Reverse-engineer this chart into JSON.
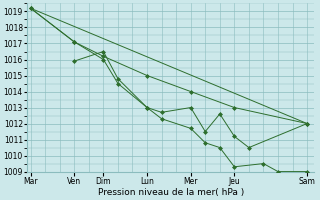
{
  "background_color": "#cce8ea",
  "grid_color": "#8bbcbe",
  "line_color": "#2d6e2d",
  "marker_color": "#2d6e2d",
  "xlabel": "Pression niveau de la mer( hPa )",
  "ylim": [
    1009,
    1019.5
  ],
  "yticks": [
    1009,
    1010,
    1011,
    1012,
    1013,
    1014,
    1015,
    1016,
    1017,
    1018,
    1019
  ],
  "figsize": [
    3.2,
    2.0
  ],
  "dpi": 100,
  "day_labels": [
    "Mar",
    "Ven",
    "Dim",
    "Lun",
    "Mer",
    "Jeu",
    "Sam"
  ],
  "day_positions": [
    0,
    12,
    20,
    32,
    44,
    56,
    76
  ],
  "xlim": [
    -1,
    78
  ],
  "series": [
    {
      "x": [
        0,
        12,
        20,
        32,
        44,
        56,
        76
      ],
      "y": [
        1019.2,
        1017.1,
        1016.2,
        1015.0,
        1014.0,
        1013.0,
        1012.0
      ]
    },
    {
      "x": [
        0,
        12,
        20,
        24,
        32,
        36,
        44,
        48,
        52,
        56,
        60,
        76
      ],
      "y": [
        1019.2,
        1017.1,
        1016.0,
        1014.5,
        1013.0,
        1012.7,
        1013.0,
        1011.5,
        1012.6,
        1011.2,
        1010.5,
        1012.0
      ]
    },
    {
      "x": [
        12,
        20,
        24,
        32,
        36,
        44,
        48,
        52,
        56,
        64,
        68,
        76
      ],
      "y": [
        1015.9,
        1016.5,
        1014.8,
        1013.0,
        1012.3,
        1011.7,
        1010.8,
        1010.5,
        1009.3,
        1009.5,
        1009.0,
        1009.0
      ]
    },
    {
      "x": [
        0,
        76
      ],
      "y": [
        1019.2,
        1012.0
      ]
    }
  ]
}
